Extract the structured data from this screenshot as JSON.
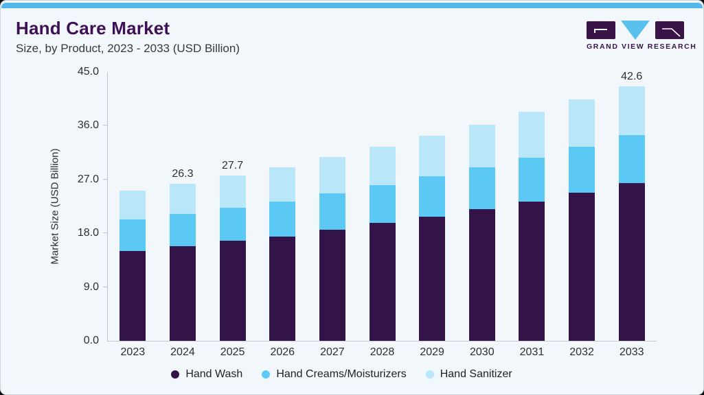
{
  "page": {
    "title": "Hand Care Market",
    "subtitle": "Size, by Product, 2023 - 2033 (USD Billion)"
  },
  "logo": {
    "text": "GRAND VIEW RESEARCH"
  },
  "colors": {
    "hand_wash": "#321449",
    "hand_creams": "#5cc9f5",
    "hand_sanitizer": "#b9e6f8",
    "accent_bar": "#54b7e9",
    "card_bg": "#f2f7fb",
    "title_purple": "#3e1156",
    "logo_purple": "#3a1448",
    "logo_triangle": "#5ac0ee",
    "axis_line": "#b9c3ca"
  },
  "chart_data": {
    "type": "bar",
    "subtype": "stacked",
    "title": "Hand Care Market Size, by Product, 2023 - 2033 (USD Billion)",
    "categories": [
      "2023",
      "2024",
      "2025",
      "2026",
      "2027",
      "2028",
      "2029",
      "2030",
      "2031",
      "2032",
      "2033"
    ],
    "series": [
      {
        "name": "Hand Wash",
        "color_key": "hand_wash",
        "values": [
          15.0,
          15.8,
          16.8,
          17.5,
          18.6,
          19.7,
          20.8,
          22.0,
          23.3,
          24.8,
          26.4
        ]
      },
      {
        "name": "Hand Creams/Moisturizers",
        "color_key": "hand_creams",
        "values": [
          5.3,
          5.4,
          5.5,
          5.8,
          6.1,
          6.4,
          6.7,
          7.0,
          7.4,
          7.7,
          8.0
        ]
      },
      {
        "name": "Hand Sanitizer",
        "color_key": "hand_sanitizer",
        "values": [
          4.8,
          5.1,
          5.4,
          5.7,
          6.1,
          6.4,
          6.8,
          7.2,
          7.6,
          7.9,
          8.2
        ]
      }
    ],
    "bar_labels": [
      "",
      "26.3",
      "27.7",
      "",
      "",
      "",
      "",
      "",
      "",
      "",
      "42.6"
    ],
    "ylabel": "Market Size (USD Billion)",
    "yticks": [
      "0.0",
      "9.0",
      "18.0",
      "27.0",
      "36.0",
      "45.0"
    ],
    "ylim": [
      0,
      45
    ],
    "grid": false,
    "legend_position": "bottom",
    "legend": [
      "Hand Wash",
      "Hand Creams/Moisturizers",
      "Hand Sanitizer"
    ]
  }
}
